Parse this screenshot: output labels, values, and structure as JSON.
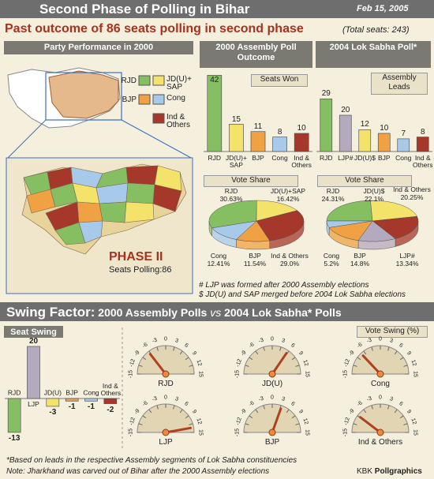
{
  "header": {
    "title": "Second Phase of Polling in Bihar",
    "date": "Feb 15, 2005",
    "headline": "Past outcome of 86 seats polling in second phase",
    "total_seats": "(Total seats: 243)"
  },
  "map": {
    "title": "Party Performance in 2000",
    "legend": [
      {
        "name": "RJD",
        "color": "#86bf62"
      },
      {
        "name": "JD(U)+ SAP",
        "color": "#f3e36a"
      },
      {
        "name": "BJP",
        "color": "#efa143"
      },
      {
        "name": "Cong",
        "color": "#a7c9ea"
      },
      {
        "name": "Ind & Others",
        "color": "#a5372b"
      }
    ],
    "phase": "PHASE II",
    "seats": "Seats Polling:86"
  },
  "chart_data": [
    {
      "type": "bar",
      "title": "2000 Assembly Poll Outcome",
      "subtitle": "Seats Won",
      "categories": [
        "RJD",
        "JD(U)+ SAP",
        "BJP",
        "Cong",
        "Ind & Others"
      ],
      "values": [
        42,
        15,
        11,
        8,
        10
      ],
      "colors": [
        "#86bf62",
        "#f3e36a",
        "#efa143",
        "#a7c9ea",
        "#a5372b"
      ]
    },
    {
      "type": "bar",
      "title": "2004 Lok Sabha Poll*",
      "subtitle": "Assembly Leads",
      "categories": [
        "RJD",
        "LJP#",
        "JD(U)$",
        "BJP",
        "Cong",
        "Ind & Others"
      ],
      "values": [
        29,
        20,
        12,
        10,
        7,
        8
      ],
      "colors": [
        "#86bf62",
        "#b4aabd",
        "#f3e36a",
        "#efa143",
        "#a7c9ea",
        "#a5372b"
      ]
    },
    {
      "type": "pie",
      "title": "Vote Share",
      "categories": [
        "RJD",
        "JD(U)+SAP",
        "Ind & Others",
        "BJP",
        "Cong"
      ],
      "values": [
        30.63,
        16.42,
        29.0,
        11.54,
        12.41
      ],
      "value_labels": [
        "30.63%",
        "16.42%",
        "29.0%",
        "11.54%",
        "12.41%"
      ],
      "colors": [
        "#86bf62",
        "#f3e36a",
        "#a5372b",
        "#efa143",
        "#a7c9ea"
      ]
    },
    {
      "type": "pie",
      "title": "Vote Share",
      "categories": [
        "RJD",
        "JD(U)$",
        "Ind & Others",
        "LJP#",
        "BJP",
        "Cong"
      ],
      "values": [
        24.31,
        22.1,
        20.25,
        13.34,
        14.8,
        5.2
      ],
      "value_labels": [
        "24.31%",
        "22.1%",
        "20.25%",
        "13.34%",
        "14.8%",
        "5.2%"
      ],
      "colors": [
        "#86bf62",
        "#f3e36a",
        "#a5372b",
        "#b4aabd",
        "#efa143",
        "#a7c9ea"
      ]
    },
    {
      "type": "bar",
      "title": "Seat Swing",
      "categories": [
        "RJD",
        "LJP",
        "JD(U)",
        "BJP",
        "Cong",
        "Ind & Others"
      ],
      "values": [
        -13,
        20,
        -3,
        -1,
        -1,
        -2
      ],
      "colors": [
        "#86bf62",
        "#b4aabd",
        "#f3e36a",
        "#efa143",
        "#a7c9ea",
        "#a5372b"
      ]
    },
    {
      "type": "gauge",
      "title": "Vote Swing (%)",
      "categories": [
        "RJD",
        "JD(U)",
        "Cong",
        "LJP",
        "BJP",
        "Ind & Others"
      ],
      "values": [
        -6.3,
        5.7,
        -7.2,
        13.3,
        3.3,
        -8.8
      ],
      "xlim": [
        -15,
        15
      ],
      "xticks": [
        -15,
        -12,
        -9,
        -6,
        -3,
        0,
        3,
        6,
        9,
        12,
        15
      ],
      "color": "#b0401f"
    }
  ],
  "swing": {
    "title_a": "Swing Factor:",
    "title_b": "2000 Assembly Polls",
    "vs": "vs",
    "title_c": "2004 Lok Sabha* Polls"
  },
  "notes": {
    "ljp": "# LJP was formed after 2000 Assembly elections",
    "jdu": "$ JD(U) and SAP merged before 2004 Lok Sabha elections",
    "leads": "*Based on leads in the respective Assembly segments of Lok Sabha constituencies",
    "jharkhand": "Note: Jharkhand was carved out of Bihar after the 2000 Assembly elections",
    "credit_a": "KBK",
    "credit_b": "Pollgraphics"
  }
}
